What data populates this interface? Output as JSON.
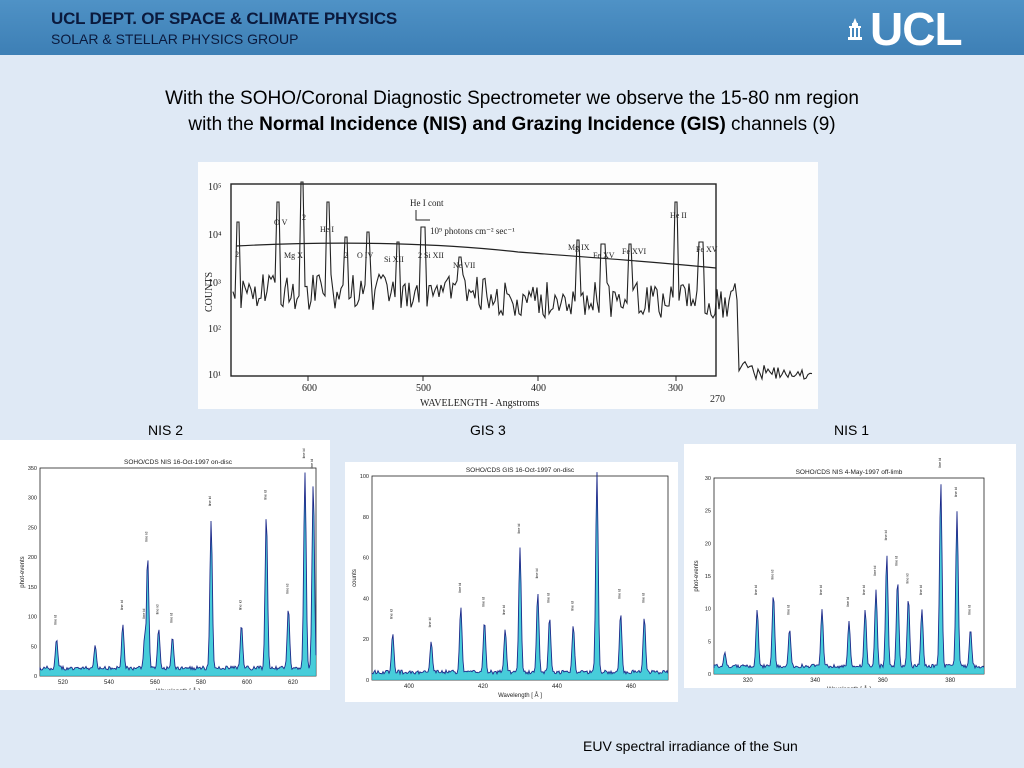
{
  "header": {
    "department": "UCL DEPT. OF SPACE & CLIMATE PHYSICS",
    "group": "SOLAR & STELLAR PHYSICS GROUP",
    "logo": "UCL"
  },
  "title": {
    "line1": "With the SOHO/Coronal Diagnostic Spectrometer we observe the 15-80 nm region",
    "line2_prefix": "with the ",
    "line2_bold": "Normal Incidence (NIS) and Grazing Incidence (GIS)",
    "line2_suffix": " channels (9)"
  },
  "main_spectrum": {
    "ylabel": "COUNTS",
    "xlabel": "WAVELENGTH - Angstroms",
    "yticks": [
      "10⁵",
      "10⁴",
      "10³",
      "10²",
      "10¹"
    ],
    "xticks": [
      "600",
      "500",
      "400",
      "300",
      "270"
    ],
    "annotation": "He I cont",
    "continuum_label": "10⁹ photons cm⁻² sec⁻¹",
    "line_labels": [
      "2",
      "O V",
      "Mg X",
      "2",
      "He I",
      "2",
      "O IV",
      "Si XII",
      "2 Si XII",
      "Ne VII",
      "Mg IX",
      "Fe XV",
      "Fe XVI",
      "He II",
      "Fe XV"
    ]
  },
  "labels": {
    "nis2": "NIS 2",
    "gis3": "GIS 3",
    "nis1": "NIS 1"
  },
  "panels": [
    {
      "title": "SOHO/CDS  NIS   16-Oct-1997  on-disc",
      "xlabel": "Wavelength [ Å ]",
      "ylabel": "phot-events",
      "xticks": [
        "520",
        "540",
        "560",
        "580",
        "600",
        "620"
      ],
      "yticks": [
        "0",
        "50",
        "100",
        "150",
        "200",
        "250",
        "300",
        "350"
      ]
    },
    {
      "title": "SOHO/CDS  GIS   16-Oct-1997  on-disc",
      "xlabel": "Wavelength [ Å ]",
      "ylabel": "counts",
      "xticks": [
        "400",
        "420",
        "440",
        "460"
      ],
      "yticks": [
        "0",
        "20",
        "40",
        "60",
        "80",
        "100"
      ]
    },
    {
      "title": "SOHO/CDS  NIS   4-May-1997  off-limb",
      "xlabel": "Wavelength [ Å ]",
      "ylabel": "phot-events",
      "xticks": [
        "320",
        "340",
        "360",
        "380"
      ],
      "yticks": [
        "0",
        "5",
        "10",
        "15",
        "20",
        "25",
        "30"
      ]
    }
  ],
  "caption": "EUV spectral irradiance of the Sun"
}
